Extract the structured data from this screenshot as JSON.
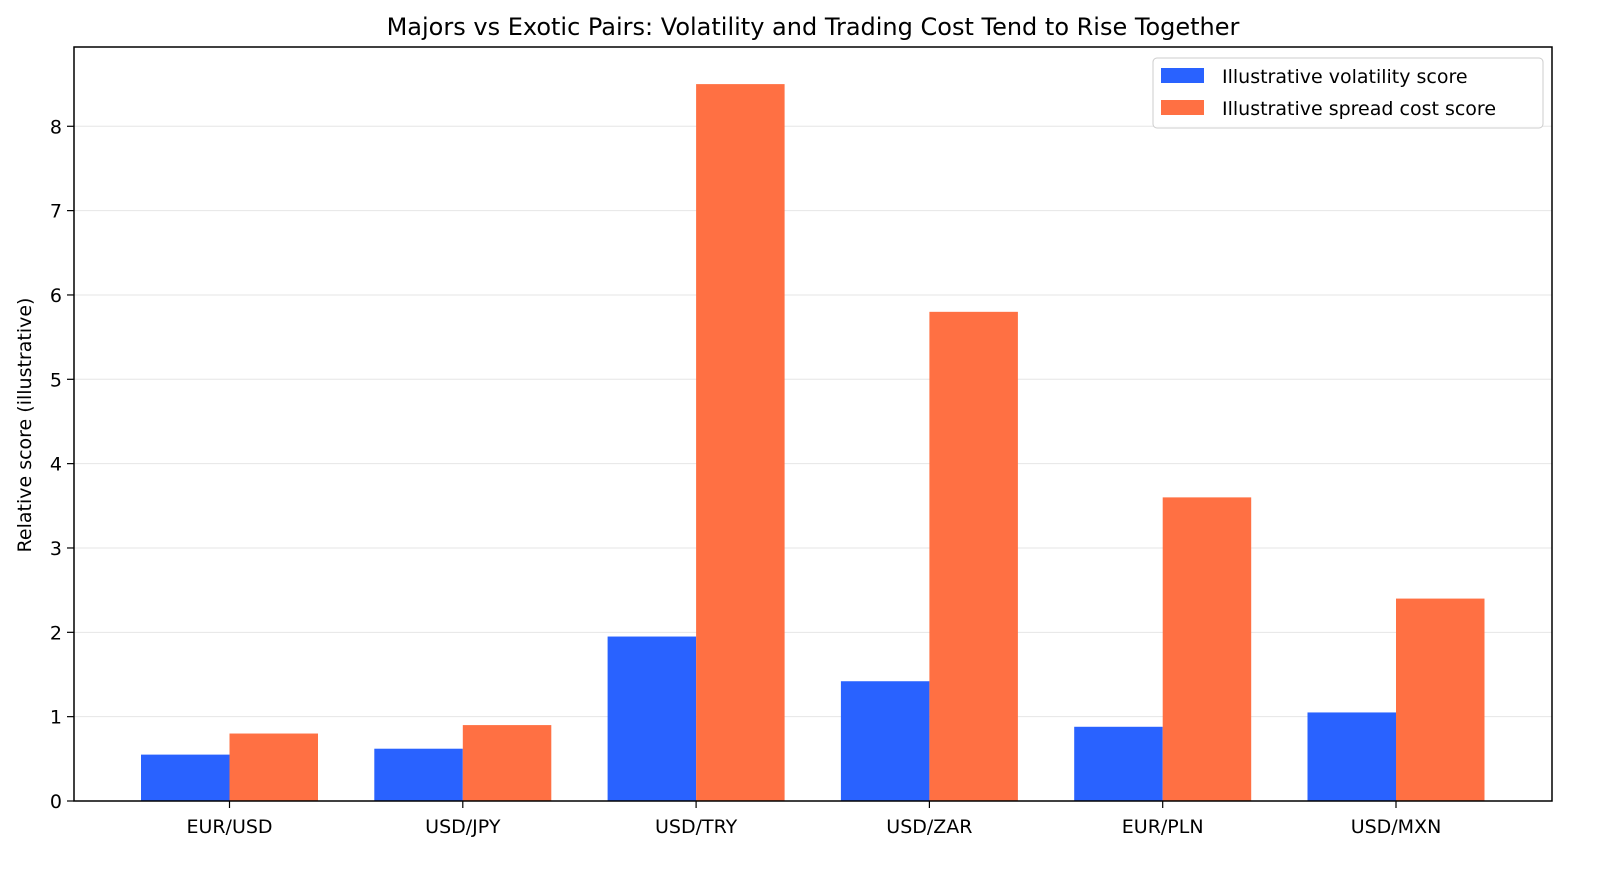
{
  "chart_data": {
    "type": "bar",
    "title": "Majors vs Exotic Pairs: Volatility and Trading Cost Tend to Rise Together",
    "xlabel": "",
    "ylabel": "Relative score (illustrative)",
    "categories": [
      "EUR/USD",
      "USD/JPY",
      "USD/TRY",
      "USD/ZAR",
      "EUR/PLN",
      "USD/MXN"
    ],
    "series": [
      {
        "name": "Illustrative volatility score",
        "color": "#2962ff",
        "values": [
          0.55,
          0.62,
          1.95,
          1.42,
          0.88,
          1.05
        ]
      },
      {
        "name": "Illustrative spread cost score",
        "color": "#ff7043",
        "values": [
          0.8,
          0.9,
          8.5,
          5.8,
          3.6,
          2.4
        ]
      }
    ],
    "ylim": [
      0,
      8.94
    ],
    "yticks": [
      "0",
      "1",
      "2",
      "3",
      "4",
      "5",
      "6",
      "7",
      "8"
    ],
    "grid": "horizontal",
    "legend_position": "top-right"
  }
}
